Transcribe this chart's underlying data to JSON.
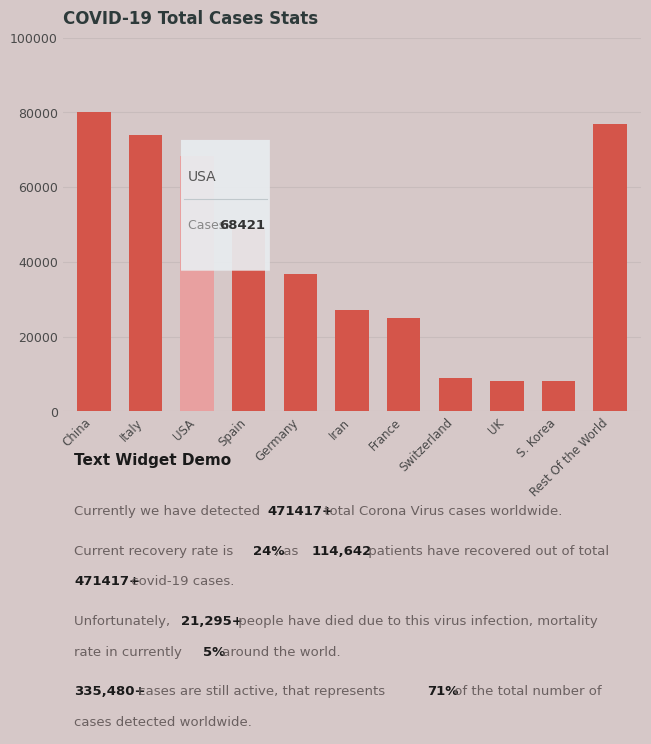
{
  "title": "COVID-19 Total Cases Stats",
  "bg_color": "#d6c8c8",
  "categories": [
    "China",
    "Italy",
    "USA",
    "Spain",
    "Germany",
    "Iran",
    "France",
    "Switzerland",
    "UK",
    "S. Korea",
    "Rest Of the World"
  ],
  "values": [
    80000,
    74000,
    68421,
    49000,
    36700,
    27000,
    25000,
    9000,
    8000,
    8000,
    77000
  ],
  "bar_colors": [
    "#d4554a",
    "#d4554a",
    "#e8a0a0",
    "#d4554a",
    "#d4554a",
    "#d4554a",
    "#d4554a",
    "#d4554a",
    "#d4554a",
    "#d4554a",
    "#d4554a"
  ],
  "highlighted_bar": 2,
  "highlighted_color": "#e8a0a0",
  "tooltip_country": "USA",
  "tooltip_cases": "68421",
  "ylim": [
    0,
    100000
  ],
  "yticks": [
    0,
    20000,
    40000,
    60000,
    80000,
    100000
  ],
  "text_color": "#4a4a4a",
  "axis_color": "#888888",
  "grid_color": "#c8bcbc",
  "text_section_title": "Text Widget Demo",
  "text_lines": [
    {
      "normal": "Currently we have detected ",
      "bold": "471417+",
      "normal2": " total Corona Virus cases worldwide."
    },
    {
      "normal": "Current recovery rate is ",
      "bold": "24%",
      "normal2": ", as ",
      "bold2": "114,642",
      "normal3": " patients have recovered out of total\n",
      "bold3": "471417+",
      "normal4": " covid-19 cases."
    },
    {
      "normal": "Unfortunately, ",
      "bold": "21,295+",
      "normal2": " people have died due to this virus infection, mortality\nrate in currently ",
      "bold2": "5%",
      "normal3": " around the world."
    },
    {
      "bold": "335,480+",
      "normal": " cases are still active, that represents ",
      "bold2": "71%",
      "normal2": " of the total number of\ncases detected worldwide."
    }
  ]
}
